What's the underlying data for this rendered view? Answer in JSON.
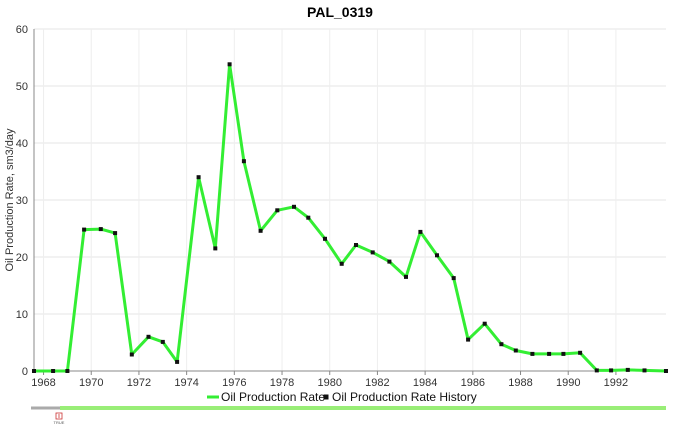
{
  "chart_data": {
    "type": "line",
    "title": "PAL_0319",
    "ylabel": "Oil Production Rate, sm3/day",
    "xlabel": "",
    "xlim": [
      1967.6,
      1994.1
    ],
    "ylim": [
      0,
      60
    ],
    "x_ticks": [
      "1968",
      "1970",
      "1972",
      "1974",
      "1976",
      "1978",
      "1980",
      "1982",
      "1984",
      "1986",
      "1988",
      "1990",
      "1992"
    ],
    "y_ticks": [
      "0",
      "10",
      "20",
      "30",
      "40",
      "50",
      "60"
    ],
    "grid": true,
    "legend_position": "bottom",
    "series": [
      {
        "name": "Oil Production Rate",
        "style": "line",
        "color": "#33ee33",
        "x": [
          1967.6,
          1968.4,
          1969.0,
          1969.7,
          1970.4,
          1971.0,
          1971.7,
          1972.4,
          1973.0,
          1973.6,
          1974.5,
          1975.2,
          1975.8,
          1976.4,
          1977.1,
          1977.8,
          1978.5,
          1979.1,
          1979.8,
          1980.5,
          1981.1,
          1981.8,
          1982.5,
          1983.2,
          1983.8,
          1984.5,
          1985.2,
          1985.8,
          1986.5,
          1987.2,
          1987.8,
          1988.5,
          1989.2,
          1989.8,
          1990.5,
          1991.2,
          1991.8,
          1992.5,
          1993.2,
          1994.1
        ],
        "values": [
          0,
          0,
          0,
          24.8,
          24.9,
          24.2,
          2.9,
          6.0,
          5.1,
          1.6,
          34.0,
          21.5,
          53.8,
          36.8,
          24.6,
          28.2,
          28.8,
          26.9,
          23.2,
          18.8,
          22.1,
          20.8,
          19.2,
          16.5,
          24.4,
          20.3,
          16.3,
          5.5,
          8.3,
          4.7,
          3.6,
          3.0,
          3.0,
          3.0,
          3.2,
          0.1,
          0.1,
          0.2,
          0.1,
          0
        ]
      },
      {
        "name": "Oil Production Rate History",
        "style": "markers",
        "color": "#111111",
        "x": [
          1967.6,
          1968.4,
          1969.0,
          1969.7,
          1970.4,
          1971.0,
          1971.7,
          1972.4,
          1973.0,
          1973.6,
          1974.5,
          1975.2,
          1975.8,
          1976.4,
          1977.1,
          1977.8,
          1978.5,
          1979.1,
          1979.8,
          1980.5,
          1981.1,
          1981.8,
          1982.5,
          1983.2,
          1983.8,
          1984.5,
          1985.2,
          1985.8,
          1986.5,
          1987.2,
          1987.8,
          1988.5,
          1989.2,
          1989.8,
          1990.5,
          1991.2,
          1991.8,
          1992.5,
          1993.2,
          1994.1
        ],
        "values": [
          0,
          0,
          0,
          24.8,
          24.9,
          24.2,
          2.9,
          6.0,
          5.1,
          1.6,
          34.0,
          21.5,
          53.8,
          36.8,
          24.6,
          28.2,
          28.8,
          26.9,
          23.2,
          18.8,
          22.1,
          20.8,
          19.2,
          16.5,
          24.4,
          20.3,
          16.3,
          5.5,
          8.3,
          4.7,
          3.6,
          3.0,
          3.0,
          3.0,
          3.2,
          0.1,
          0.1,
          0.2,
          0.1,
          0
        ]
      }
    ]
  },
  "navigator": {
    "track_color": "#aaaaaa",
    "range_color": "#99ee77",
    "handle_label": "TRUE"
  }
}
